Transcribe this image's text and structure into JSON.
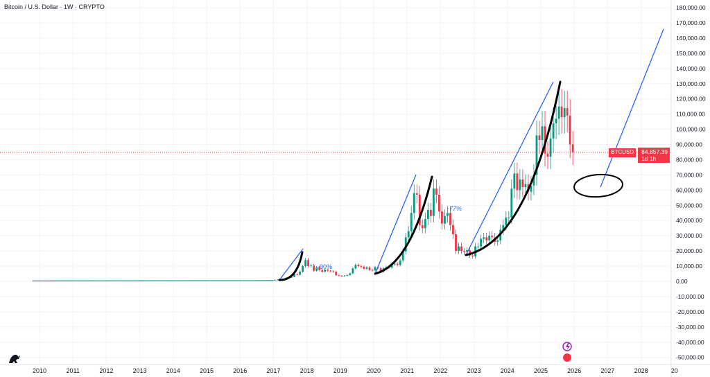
{
  "header": {
    "title": "Bitcoin / U.S. Dollar · 1W · CRYPTO"
  },
  "price_tag": {
    "symbol": "BTCUSD",
    "price": "84,857.39",
    "countdown": "1d 1h"
  },
  "colors": {
    "up": "#089981",
    "down": "#f23645",
    "drawing_blue": "#2962ff",
    "drawing_black": "#000000",
    "grid": "#f0f3fa"
  },
  "annotations": [
    {
      "text": "-90%"
    },
    {
      "text": "-77%"
    }
  ],
  "icons": [
    "tradingview-logo",
    "lightning-icon",
    "us-flag-icon"
  ],
  "chart_data": {
    "type": "candlestick",
    "title": "Bitcoin / U.S. Dollar · 1W · CRYPTO",
    "ylim": [
      -50000,
      180000
    ],
    "yticks": [
      "180,000.00",
      "170,000.00",
      "160,000.00",
      "150,000.00",
      "140,000.00",
      "130,000.00",
      "120,000.00",
      "110,000.00",
      "100,000.00",
      "90,000.00",
      "80,000.00",
      "70,000.00",
      "60,000.00",
      "50,000.00",
      "40,000.00",
      "30,000.00",
      "20,000.00",
      "10,000.00",
      "0.00",
      "-10,000.00",
      "-20,000.00",
      "-30,000.00",
      "-40,000.00",
      "-50,000.00"
    ],
    "xticks": [
      "2010",
      "2011",
      "2012",
      "2013",
      "2014",
      "2015",
      "2016",
      "2017",
      "2018",
      "2019",
      "2020",
      "2021",
      "2022",
      "2023",
      "2024",
      "2025",
      "2026",
      "2027",
      "2028",
      "20"
    ],
    "last_price": 84857.39,
    "monthly_closes_k_from_2017": [
      1,
      1.2,
      1.1,
      1.4,
      2.3,
      2.5,
      2.9,
      4.7,
      4.3,
      6.4,
      10,
      14,
      10,
      10.4,
      7,
      9.2,
      7.5,
      6.4,
      7.7,
      7,
      6.6,
      6.3,
      4,
      3.7,
      3.4,
      3.8,
      4.1,
      5.3,
      8.5,
      10.8,
      10,
      9.6,
      8.3,
      9.2,
      7.5,
      7.2,
      9.3,
      8.6,
      6.4,
      8.6,
      9.4,
      9.1,
      11.3,
      11.6,
      10.8,
      13.8,
      19.7,
      29,
      33,
      45,
      58,
      57,
      37,
      35,
      41,
      47,
      43,
      61,
      57,
      46,
      38,
      43,
      45,
      37,
      31,
      20,
      23,
      20,
      19.4,
      20.5,
      17,
      16.5,
      23,
      23,
      28,
      29,
      27,
      30,
      29,
      26,
      27,
      34,
      37,
      42,
      42,
      61,
      71,
      60,
      67,
      62,
      64,
      59,
      63,
      70,
      96,
      93,
      102,
      84,
      82,
      94,
      104,
      107,
      115,
      108,
      114,
      109,
      90,
      85
    ]
  }
}
